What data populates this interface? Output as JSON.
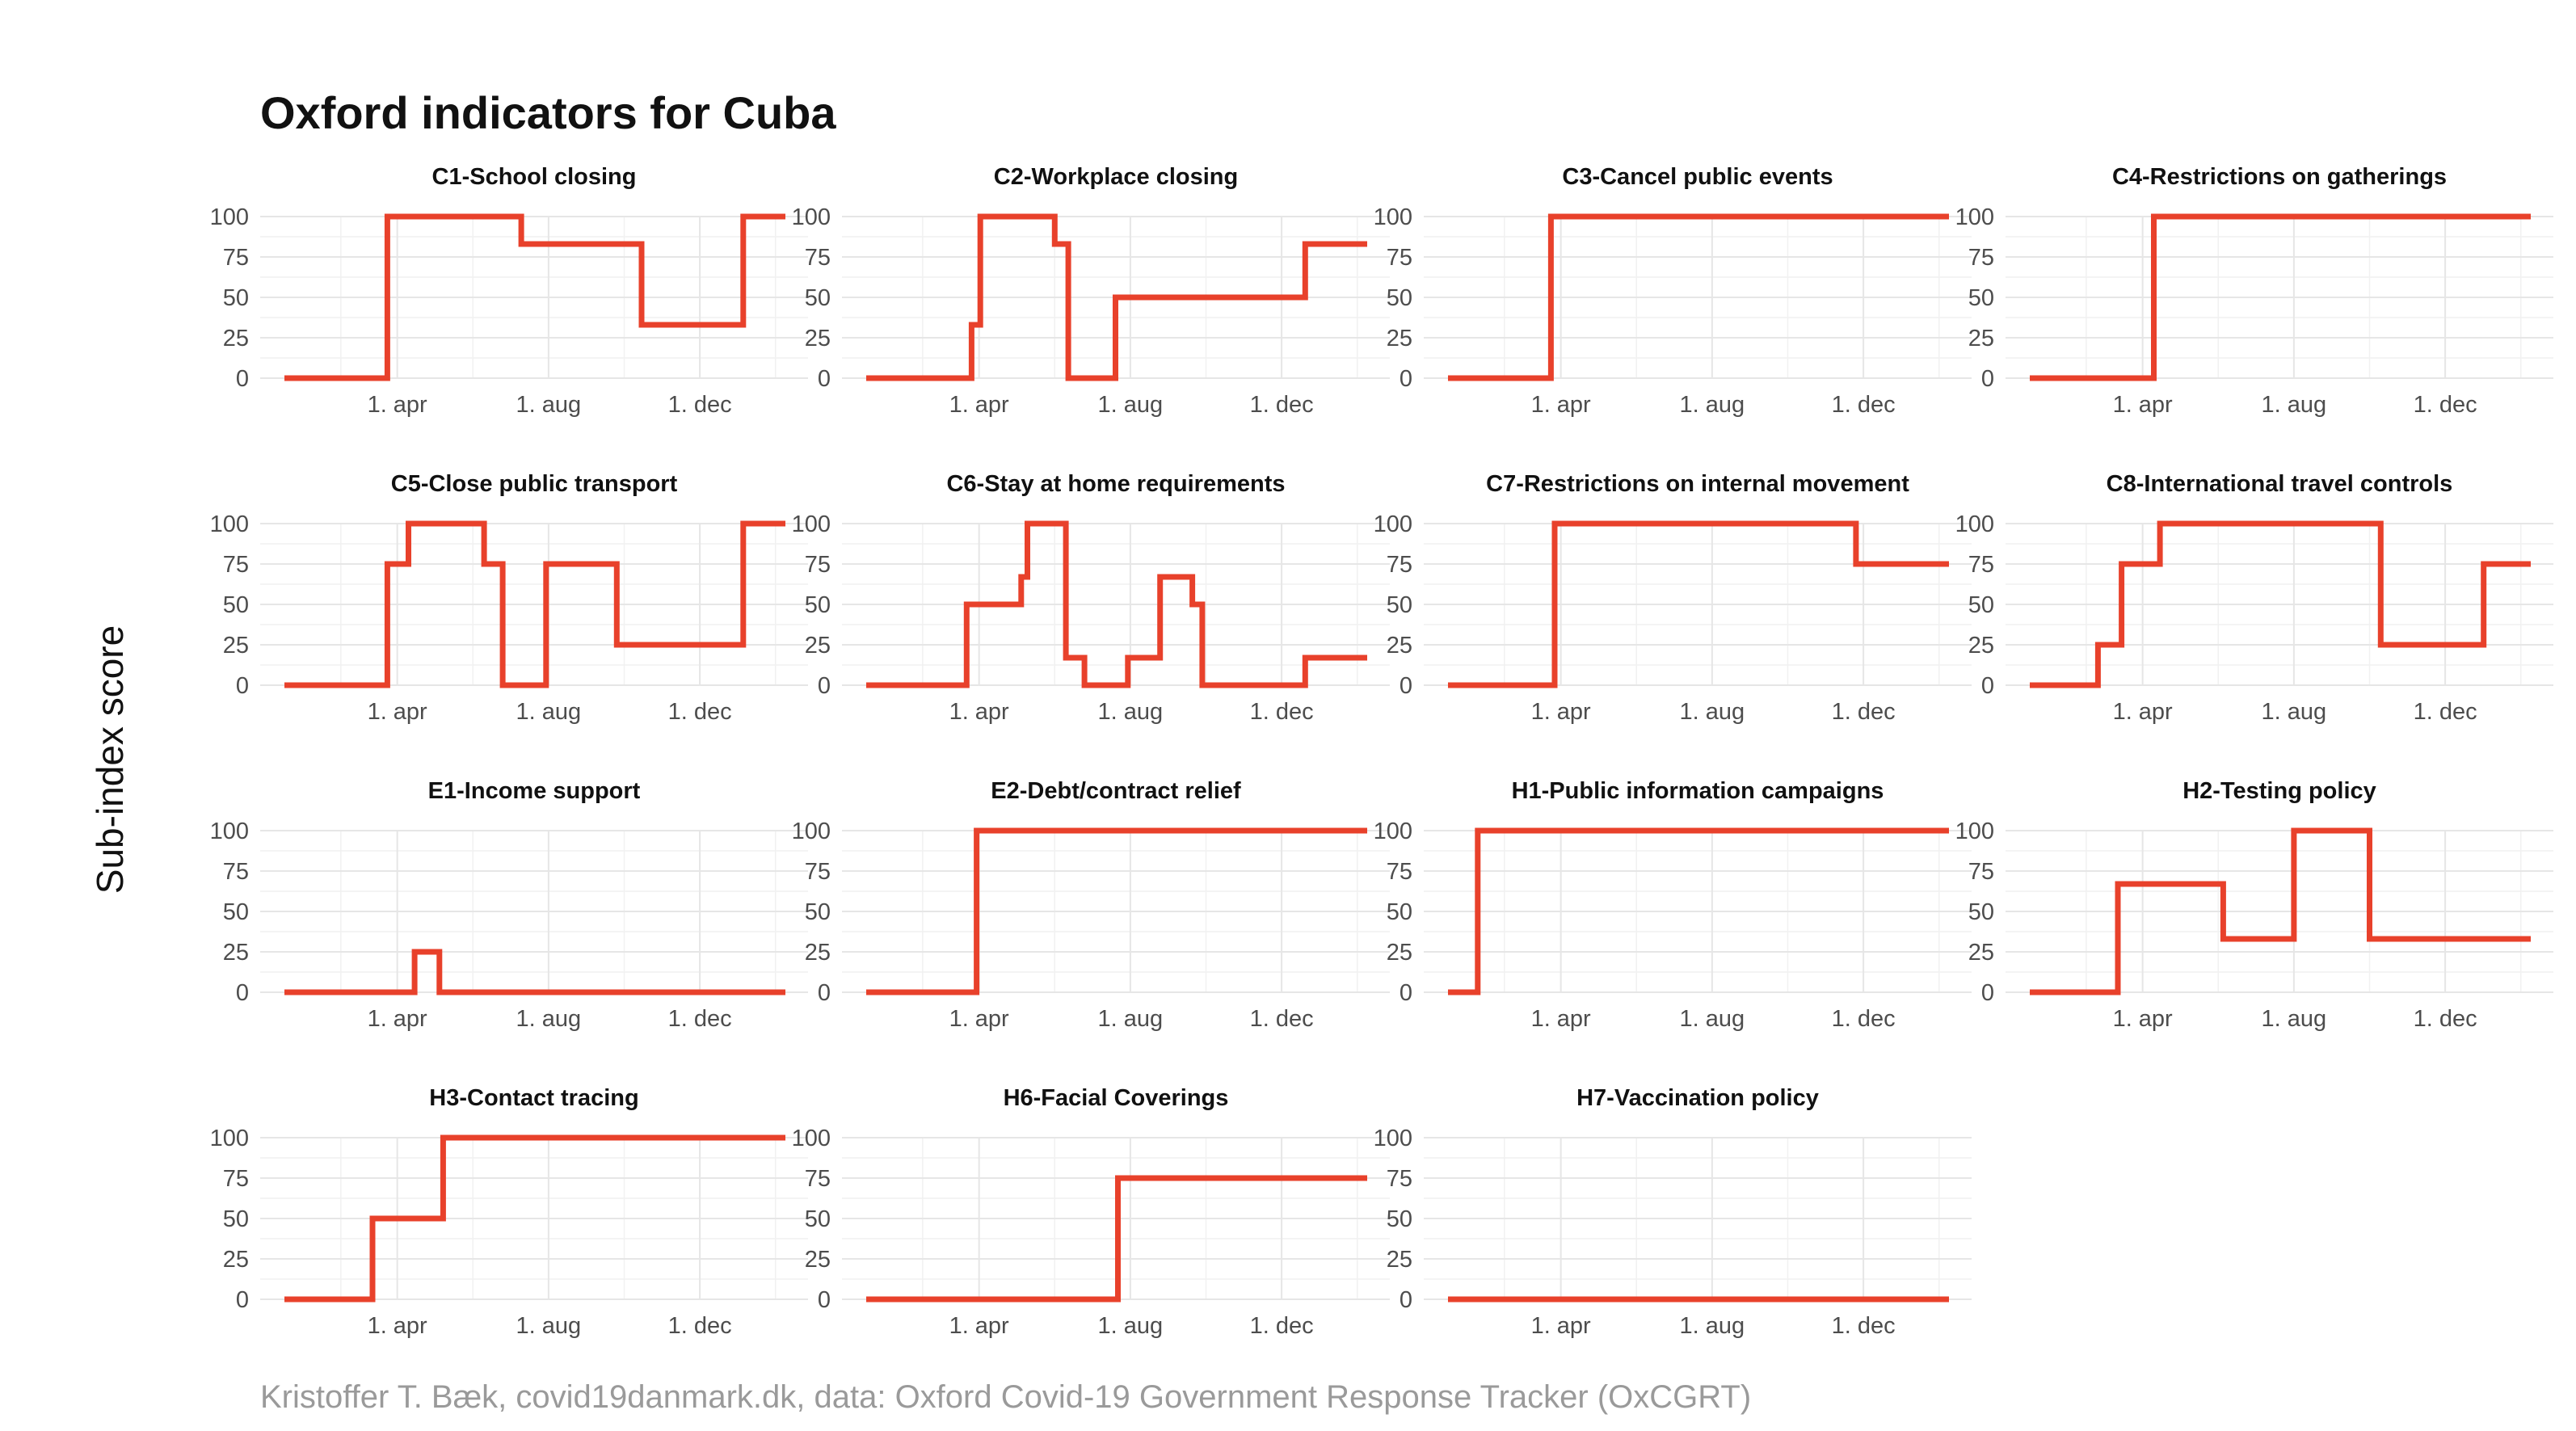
{
  "title": "Oxford indicators for Cuba",
  "caption": "Kristoffer T. Bæk, covid19danmark.dk, data: Oxford Covid-19 Government Response Tracker (OxCGRT)",
  "ylabel": "Sub-index score",
  "colors": {
    "series": "#e8412b",
    "grid": "#e6e6e6",
    "caption": "#9a9a9a"
  },
  "chart_data": {
    "type": "line",
    "layout": "facet-grid",
    "x_range": [
      "2020-01-01",
      "2021-02-08"
    ],
    "x_ticks": [
      {
        "date": "2020-04-01",
        "label": "1. apr"
      },
      {
        "date": "2020-08-01",
        "label": "1. aug"
      },
      {
        "date": "2020-12-01",
        "label": "1. dec"
      }
    ],
    "ylim": [
      0,
      100
    ],
    "y_ticks": [
      0,
      25,
      50,
      75,
      100
    ],
    "grid": true,
    "panels": [
      {
        "title": "C1-School closing",
        "steps": [
          [
            "2020-01-01",
            0
          ],
          [
            "2020-03-24",
            100
          ],
          [
            "2020-07-10",
            83
          ],
          [
            "2020-10-15",
            33
          ],
          [
            "2021-01-05",
            100
          ],
          [
            "2021-02-08",
            100
          ]
        ]
      },
      {
        "title": "C2-Workplace closing",
        "steps": [
          [
            "2020-01-01",
            0
          ],
          [
            "2020-03-26",
            33
          ],
          [
            "2020-04-02",
            100
          ],
          [
            "2020-06-01",
            83
          ],
          [
            "2020-06-12",
            0
          ],
          [
            "2020-07-20",
            50
          ],
          [
            "2020-12-20",
            83
          ],
          [
            "2021-02-08",
            83
          ]
        ]
      },
      {
        "title": "C3-Cancel public events",
        "steps": [
          [
            "2020-01-01",
            0
          ],
          [
            "2020-03-24",
            100
          ],
          [
            "2021-02-08",
            100
          ]
        ]
      },
      {
        "title": "C4-Restrictions on gatherings",
        "steps": [
          [
            "2020-01-01",
            0
          ],
          [
            "2020-04-10",
            100
          ],
          [
            "2021-02-08",
            100
          ]
        ]
      },
      {
        "title": "C5-Close public transport",
        "steps": [
          [
            "2020-01-01",
            0
          ],
          [
            "2020-03-24",
            75
          ],
          [
            "2020-04-10",
            100
          ],
          [
            "2020-06-10",
            75
          ],
          [
            "2020-06-25",
            0
          ],
          [
            "2020-07-30",
            75
          ],
          [
            "2020-09-25",
            25
          ],
          [
            "2021-01-05",
            100
          ],
          [
            "2021-02-08",
            100
          ]
        ]
      },
      {
        "title": "C6-Stay at home requirements",
        "steps": [
          [
            "2020-01-01",
            0
          ],
          [
            "2020-03-22",
            50
          ],
          [
            "2020-05-05",
            67
          ],
          [
            "2020-05-10",
            100
          ],
          [
            "2020-06-10",
            17
          ],
          [
            "2020-06-25",
            0
          ],
          [
            "2020-07-30",
            17
          ],
          [
            "2020-08-25",
            67
          ],
          [
            "2020-09-20",
            50
          ],
          [
            "2020-09-28",
            0
          ],
          [
            "2020-12-20",
            17
          ],
          [
            "2021-02-08",
            17
          ]
        ]
      },
      {
        "title": "C7-Restrictions on internal movement",
        "steps": [
          [
            "2020-01-01",
            0
          ],
          [
            "2020-03-27",
            100
          ],
          [
            "2020-11-25",
            75
          ],
          [
            "2021-02-08",
            75
          ]
        ]
      },
      {
        "title": "C8-International travel controls",
        "steps": [
          [
            "2020-01-01",
            0
          ],
          [
            "2020-02-25",
            25
          ],
          [
            "2020-03-15",
            75
          ],
          [
            "2020-04-15",
            100
          ],
          [
            "2020-10-10",
            25
          ],
          [
            "2021-01-01",
            75
          ],
          [
            "2021-02-08",
            75
          ]
        ]
      },
      {
        "title": "E1-Income support",
        "steps": [
          [
            "2020-01-01",
            0
          ],
          [
            "2020-04-15",
            25
          ],
          [
            "2020-05-05",
            0
          ],
          [
            "2021-02-08",
            0
          ]
        ]
      },
      {
        "title": "E2-Debt/contract relief",
        "steps": [
          [
            "2020-01-01",
            0
          ],
          [
            "2020-03-30",
            100
          ],
          [
            "2021-02-08",
            100
          ]
        ]
      },
      {
        "title": "H1-Public information campaigns",
        "steps": [
          [
            "2020-01-01",
            0
          ],
          [
            "2020-01-25",
            100
          ],
          [
            "2021-02-08",
            100
          ]
        ]
      },
      {
        "title": "H2-Testing policy",
        "steps": [
          [
            "2020-01-01",
            0
          ],
          [
            "2020-03-12",
            67
          ],
          [
            "2020-06-05",
            33
          ],
          [
            "2020-08-01",
            100
          ],
          [
            "2020-10-01",
            33
          ],
          [
            "2021-02-08",
            33
          ]
        ]
      },
      {
        "title": "H3-Contact tracing",
        "steps": [
          [
            "2020-01-01",
            0
          ],
          [
            "2020-03-12",
            50
          ],
          [
            "2020-05-08",
            100
          ],
          [
            "2021-02-08",
            100
          ]
        ]
      },
      {
        "title": "H6-Facial Coverings",
        "steps": [
          [
            "2020-01-01",
            0
          ],
          [
            "2020-07-22",
            75
          ],
          [
            "2021-02-08",
            75
          ]
        ]
      },
      {
        "title": "H7-Vaccination policy",
        "steps": [
          [
            "2020-01-01",
            0
          ],
          [
            "2021-02-08",
            0
          ]
        ]
      }
    ]
  }
}
